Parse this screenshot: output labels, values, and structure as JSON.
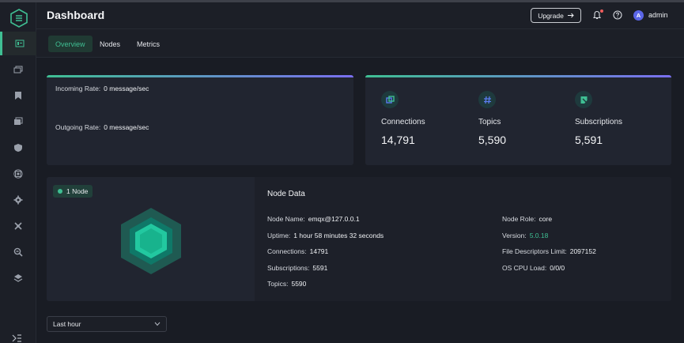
{
  "header": {
    "title": "Dashboard",
    "upgrade_label": "Upgrade",
    "avatar_initial": "A",
    "username": "admin"
  },
  "tabs": [
    {
      "label": "Overview",
      "active": true
    },
    {
      "label": "Nodes",
      "active": false
    },
    {
      "label": "Metrics",
      "active": false
    }
  ],
  "sidebar": {
    "items": [
      {
        "icon": "dashboard-icon",
        "active": true
      },
      {
        "icon": "clients-icon"
      },
      {
        "icon": "bookmark-icon"
      },
      {
        "icon": "messages-icon"
      },
      {
        "icon": "shield-icon"
      },
      {
        "icon": "chip-icon"
      },
      {
        "icon": "gear-icon"
      },
      {
        "icon": "tools-icon"
      },
      {
        "icon": "diagnose-icon"
      },
      {
        "icon": "layers-icon"
      }
    ]
  },
  "rates": {
    "incoming_label": "Incoming Rate:",
    "incoming_value": "0 message/sec",
    "outgoing_label": "Outgoing Rate:",
    "outgoing_value": "0 message/sec"
  },
  "stats": [
    {
      "label": "Connections",
      "value": "14,791",
      "icon": "connections-icon"
    },
    {
      "label": "Topics",
      "value": "5,590",
      "icon": "topics-icon"
    },
    {
      "label": "Subscriptions",
      "value": "5,591",
      "icon": "subscriptions-icon"
    }
  ],
  "node": {
    "badge": "1 Node",
    "title": "Node Data",
    "name_label": "Node Name:",
    "name_value": "emqx@127.0.0.1",
    "uptime_label": "Uptime:",
    "uptime_value": "1 hour 58 minutes 32 seconds",
    "connections_label": "Connections:",
    "connections_value": "14791",
    "subscriptions_label": "Subscriptions:",
    "subscriptions_value": "5591",
    "topics_label": "Topics:",
    "topics_value": "5590",
    "role_label": "Node Role:",
    "role_value": "core",
    "version_label": "Version:",
    "version_value": "5.0.18",
    "fd_label": "File Descriptors Limit:",
    "fd_value": "2097152",
    "cpu_label": "OS CPU Load:",
    "cpu_value": "0/0/0"
  },
  "time_select": {
    "value": "Last hour"
  },
  "colors": {
    "accent": "#3fbf93",
    "background": "#191c24",
    "card": "#212530",
    "alert": "#f05d5d"
  }
}
